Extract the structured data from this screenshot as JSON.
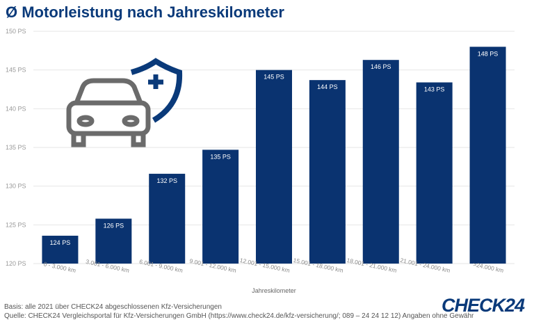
{
  "title": "Ø Motorleistung nach Jahreskilometer",
  "chart_data": {
    "type": "bar",
    "title": "Ø Motorleistung nach Jahreskilometer",
    "xlabel": "Jahreskilometer",
    "ylabel": "",
    "ylim": [
      120,
      150
    ],
    "yticks": [
      "120 PS",
      "125 PS",
      "130 PS",
      "135 PS",
      "140 PS",
      "145 PS",
      "150 PS"
    ],
    "ytick_values": [
      120,
      125,
      130,
      135,
      140,
      145,
      150
    ],
    "grid": true,
    "categories": [
      "0 - 3.000 km",
      "3.001 - 6.000 km",
      "6.001 - 9.000 km",
      "9.001 - 12.000 km",
      "12.001 - 15.000 km",
      "15.001 - 18.000 km",
      "18.001 - 21.000 km",
      "21.001 - 24.000 km",
      ">24.000 km"
    ],
    "values": [
      123.6,
      125.8,
      131.6,
      134.7,
      145.0,
      143.7,
      146.3,
      143.4,
      148.0
    ],
    "data_labels": [
      "124 PS",
      "126 PS",
      "132 PS",
      "135 PS",
      "145 PS",
      "144 PS",
      "146 PS",
      "143 PS",
      "148 PS"
    ],
    "bar_color": "#0a3370"
  },
  "footer": {
    "basis": "Basis: alle 2021 über CHECK24 abgeschlossenen Kfz-Versicherungen",
    "source": "Quelle: CHECK24 Vergleichsportal für Kfz-Versicherungen GmbH (https://www.check24.de/kfz-versicherung/; 089 – 24 24 12 12) Angaben ohne Gewähr"
  },
  "logo": "CHECK24",
  "icons": [
    "car-icon",
    "shield-plus-icon"
  ]
}
